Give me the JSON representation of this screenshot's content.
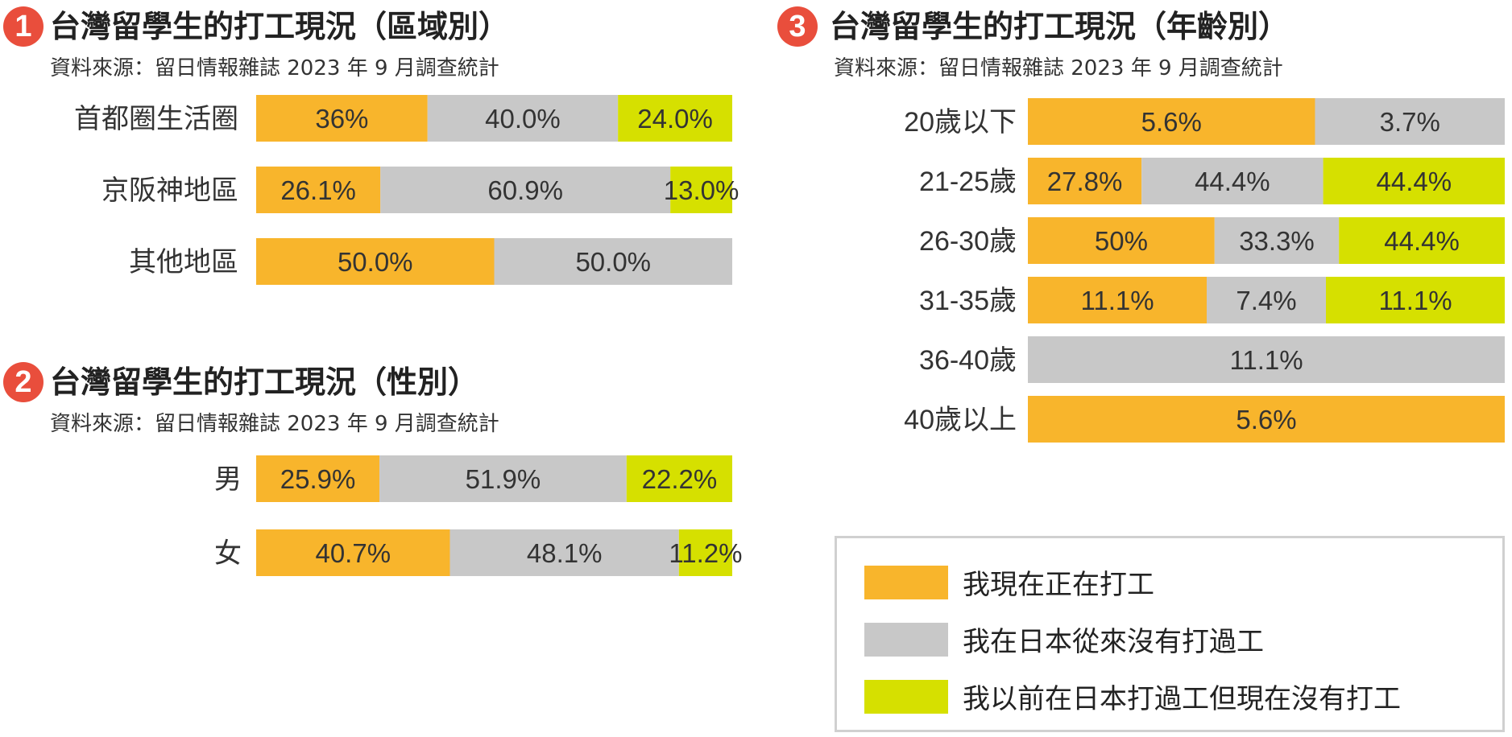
{
  "colors": {
    "working_now": "#f8b52c",
    "never_worked": "#c8c8c8",
    "worked_before": "#d6e000"
  },
  "panels": [
    {
      "number": "1",
      "title": "台灣留學生的打工現況（區域別）",
      "source": "資料來源：留日情報雜誌 2023 年 9 月調查統計"
    },
    {
      "number": "2",
      "title": "台灣留學生的打工現況（性別）",
      "source": "資料來源：留日情報雜誌 2023 年 9 月調查統計"
    },
    {
      "number": "3",
      "title": "台灣留學生的打工現況（年齡別）",
      "source": "資料來源：留日情報雜誌 2023 年 9 月調查統計"
    }
  ],
  "legend": {
    "items": [
      {
        "label": "我現在正在打工",
        "color": "#f8b52c"
      },
      {
        "label": "我在日本從來沒有打過工",
        "color": "#c8c8c8"
      },
      {
        "label": "我以前在日本打過工但現在沒有打工",
        "color": "#d6e000"
      }
    ]
  },
  "chart_data": [
    {
      "type": "bar",
      "orientation": "horizontal",
      "stacked": true,
      "title": "台灣留學生的打工現況（區域別）",
      "categories": [
        "首都圈生活圈",
        "京阪神地區",
        "其他地區"
      ],
      "series": [
        {
          "name": "我現在正在打工",
          "values": [
            36,
            26.1,
            50.0
          ],
          "labels": [
            "36%",
            "26.1%",
            "50.0%"
          ]
        },
        {
          "name": "我在日本從來沒有打過工",
          "values": [
            40.0,
            60.9,
            50.0
          ],
          "labels": [
            "40.0%",
            "60.9%",
            "50.0%"
          ]
        },
        {
          "name": "我以前在日本打過工但現在沒有打工",
          "values": [
            24.0,
            13.0,
            0
          ],
          "labels": [
            "24.0%",
            "13.0%",
            ""
          ]
        }
      ]
    },
    {
      "type": "bar",
      "orientation": "horizontal",
      "stacked": true,
      "title": "台灣留學生的打工現況（性別）",
      "categories": [
        "男",
        "女"
      ],
      "series": [
        {
          "name": "我現在正在打工",
          "values": [
            25.9,
            40.7
          ],
          "labels": [
            "25.9%",
            "40.7%"
          ]
        },
        {
          "name": "我在日本從來沒有打過工",
          "values": [
            51.9,
            48.1
          ],
          "labels": [
            "51.9%",
            "48.1%"
          ]
        },
        {
          "name": "我以前在日本打過工但現在沒有打工",
          "values": [
            22.2,
            11.2
          ],
          "labels": [
            "22.2%",
            "11.2%"
          ]
        }
      ]
    },
    {
      "type": "bar",
      "orientation": "horizontal",
      "stacked": true,
      "title": "台灣留學生的打工現況（年齡別）",
      "categories": [
        "20歲以下",
        "21-25歲",
        "26-30歲",
        "31-35歲",
        "36-40歲",
        "40歲以上"
      ],
      "series": [
        {
          "name": "我現在正在打工",
          "values": [
            5.6,
            27.8,
            50,
            11.1,
            0,
            5.6
          ],
          "labels": [
            "5.6%",
            "27.8%",
            "50%",
            "11.1%",
            "",
            "5.6%"
          ]
        },
        {
          "name": "我在日本從來沒有打過工",
          "values": [
            3.7,
            44.4,
            33.3,
            7.4,
            11.1,
            0
          ],
          "labels": [
            "3.7%",
            "44.4%",
            "33.3%",
            "7.4%",
            "11.1%",
            ""
          ]
        },
        {
          "name": "我以前在日本打過工但現在沒有打工",
          "values": [
            0,
            44.4,
            44.4,
            11.1,
            0,
            0
          ],
          "labels": [
            "",
            "44.4%",
            "44.4%",
            "11.1%",
            "",
            ""
          ]
        }
      ]
    }
  ]
}
